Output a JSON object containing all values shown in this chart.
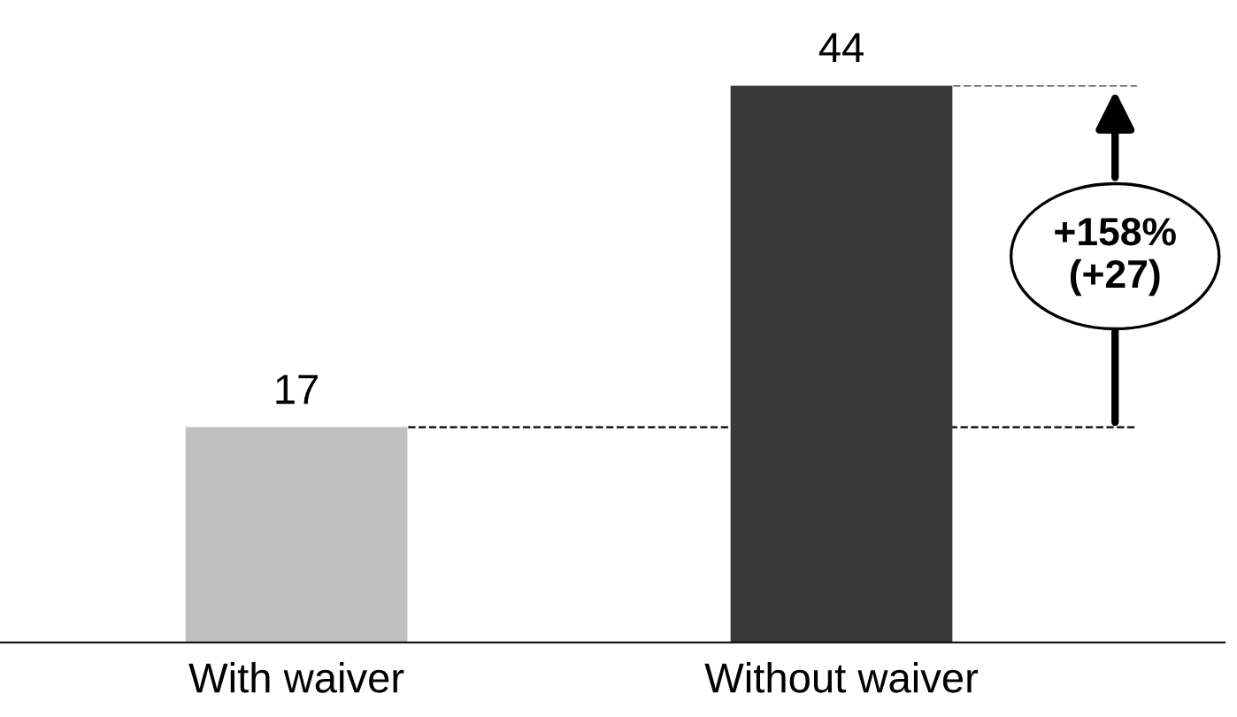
{
  "chart_data": {
    "type": "bar",
    "categories": [
      "With waiver",
      "Without waiver"
    ],
    "values": [
      17,
      44
    ],
    "colors": [
      "#c0c0c0",
      "#3a3a3a"
    ],
    "data_labels": true,
    "ref_lines": [
      {
        "axis": "y",
        "value": 17,
        "line_style": "dashed",
        "color": "#000000"
      },
      {
        "axis": "y",
        "value": 44,
        "line_style": "dashed",
        "color": "#000000"
      }
    ],
    "annotations": [
      "+158%\n(+27)"
    ],
    "grid": false,
    "legend": false
  }
}
